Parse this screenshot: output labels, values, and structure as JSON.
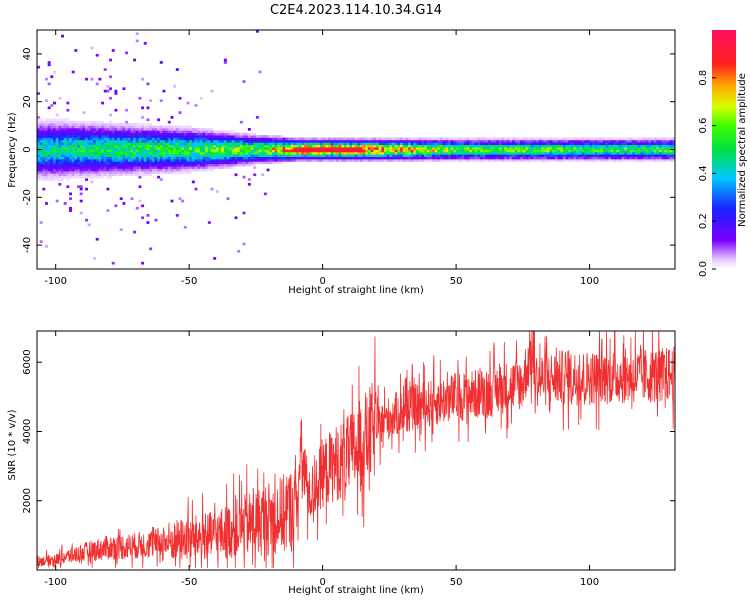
{
  "title": "C2E4.2023.114.10.34.G14",
  "colors": {
    "snr_line": "#f03030",
    "axis": "#000000",
    "background": "#ffffff"
  },
  "chart_data": [
    {
      "type": "heatmap",
      "title": "C2E4.2023.114.10.34.G14",
      "xlabel": "Height of straight line (km)",
      "ylabel": "Frequency (Hz)",
      "xlim": [
        -107,
        132
      ],
      "ylim": [
        -50,
        50
      ],
      "xticks": [
        -100,
        -50,
        0,
        50,
        100
      ],
      "yticks": [
        -40,
        -20,
        0,
        20,
        40
      ],
      "colorbar": {
        "label": "Normalized spectral amplitude",
        "range": [
          0,
          1
        ],
        "ticks": [
          0.0,
          0.2,
          0.4,
          0.6,
          0.8
        ],
        "colormap": "rainbow (purple-blue-cyan-green-yellow-orange-red)"
      },
      "description_points": [
        {
          "height_km": -100,
          "band_half_width_hz": 8,
          "peak_amplitude": 0.45
        },
        {
          "height_km": -75,
          "band_half_width_hz": 7,
          "peak_amplitude": 0.5
        },
        {
          "height_km": -50,
          "band_half_width_hz": 6,
          "peak_amplitude": 0.55
        },
        {
          "height_km": -25,
          "band_half_width_hz": 4,
          "peak_amplitude": 0.6
        },
        {
          "height_km": -8,
          "band_half_width_hz": 3,
          "peak_amplitude": 0.9
        },
        {
          "height_km": 10,
          "band_half_width_hz": 3,
          "peak_amplitude": 0.9
        },
        {
          "height_km": 50,
          "band_half_width_hz": 3,
          "peak_amplitude": 0.6
        },
        {
          "height_km": 100,
          "band_half_width_hz": 3,
          "peak_amplitude": 0.55
        },
        {
          "height_km": 130,
          "band_half_width_hz": 3,
          "peak_amplitude": 0.55
        }
      ]
    },
    {
      "type": "line",
      "xlabel": "Height of straight line (km)",
      "ylabel": "SNR (10 * v/v)",
      "xlim": [
        -107,
        132
      ],
      "ylim": [
        0,
        6900
      ],
      "xticks": [
        -100,
        -50,
        0,
        50,
        100
      ],
      "yticks": [
        2000,
        4000,
        6000
      ],
      "series": [
        {
          "x": [
            -107,
            -100,
            -90,
            -80,
            -70,
            -60,
            -50,
            -40,
            -30,
            -20,
            -15,
            -10,
            -8,
            -5,
            0,
            5,
            10,
            15,
            20,
            25,
            30,
            40,
            50,
            60,
            70,
            75,
            78,
            80,
            90,
            100,
            110,
            120,
            132
          ],
          "y": [
            250,
            300,
            500,
            650,
            700,
            800,
            900,
            1000,
            1250,
            1500,
            1600,
            1800,
            3300,
            2100,
            2800,
            3100,
            3300,
            3700,
            4100,
            4400,
            4600,
            4800,
            5000,
            5100,
            5300,
            5400,
            6300,
            5500,
            5550,
            5550,
            5600,
            5600,
            5650
          ]
        }
      ]
    }
  ]
}
